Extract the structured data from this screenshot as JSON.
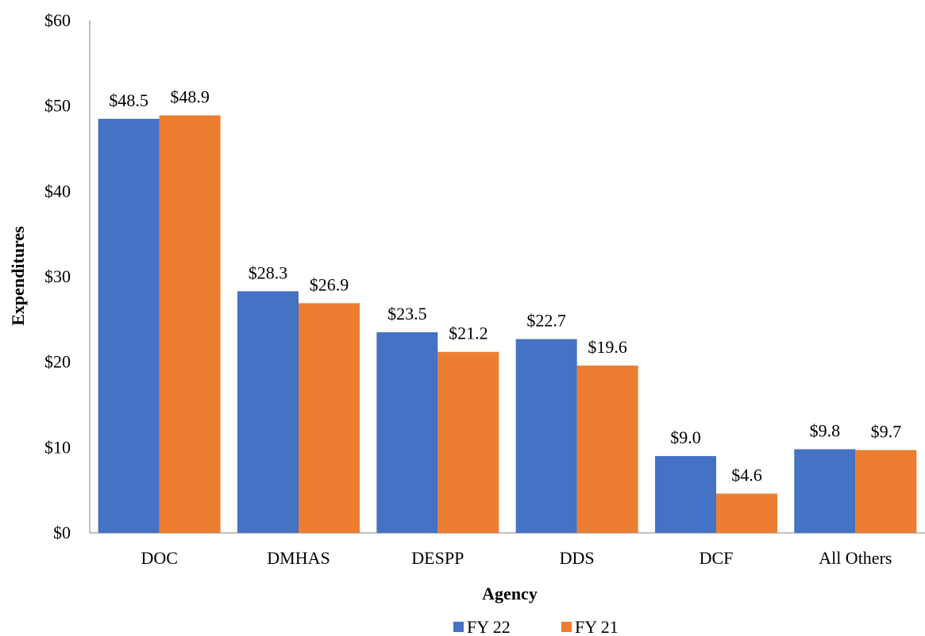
{
  "chart_data": {
    "type": "bar",
    "categories": [
      "DOC",
      "DMHAS",
      "DESPP",
      "DDS",
      "DCF",
      "All Others"
    ],
    "series": [
      {
        "name": "FY 22",
        "color": "#4472C4",
        "values": [
          48.5,
          28.3,
          23.5,
          22.7,
          9.0,
          9.8
        ],
        "labels": [
          "$48.5",
          "$28.3",
          "$23.5",
          "$22.7",
          "$9.0",
          "$9.8"
        ]
      },
      {
        "name": "FY 21",
        "color": "#ED7D31",
        "values": [
          48.9,
          26.9,
          21.2,
          19.6,
          4.6,
          9.7
        ],
        "labels": [
          "$48.9",
          "$26.9",
          "$21.2",
          "$19.6",
          "$4.6",
          "$9.7"
        ]
      }
    ],
    "xlabel": "Agency",
    "ylabel": "Expenditures",
    "ylim": [
      0,
      60
    ],
    "yticks": [
      0,
      10,
      20,
      30,
      40,
      50,
      60
    ],
    "ytick_labels": [
      "$0",
      "$10",
      "$20",
      "$30",
      "$40",
      "$50",
      "$60"
    ],
    "grid": false,
    "legend_position": "bottom"
  }
}
